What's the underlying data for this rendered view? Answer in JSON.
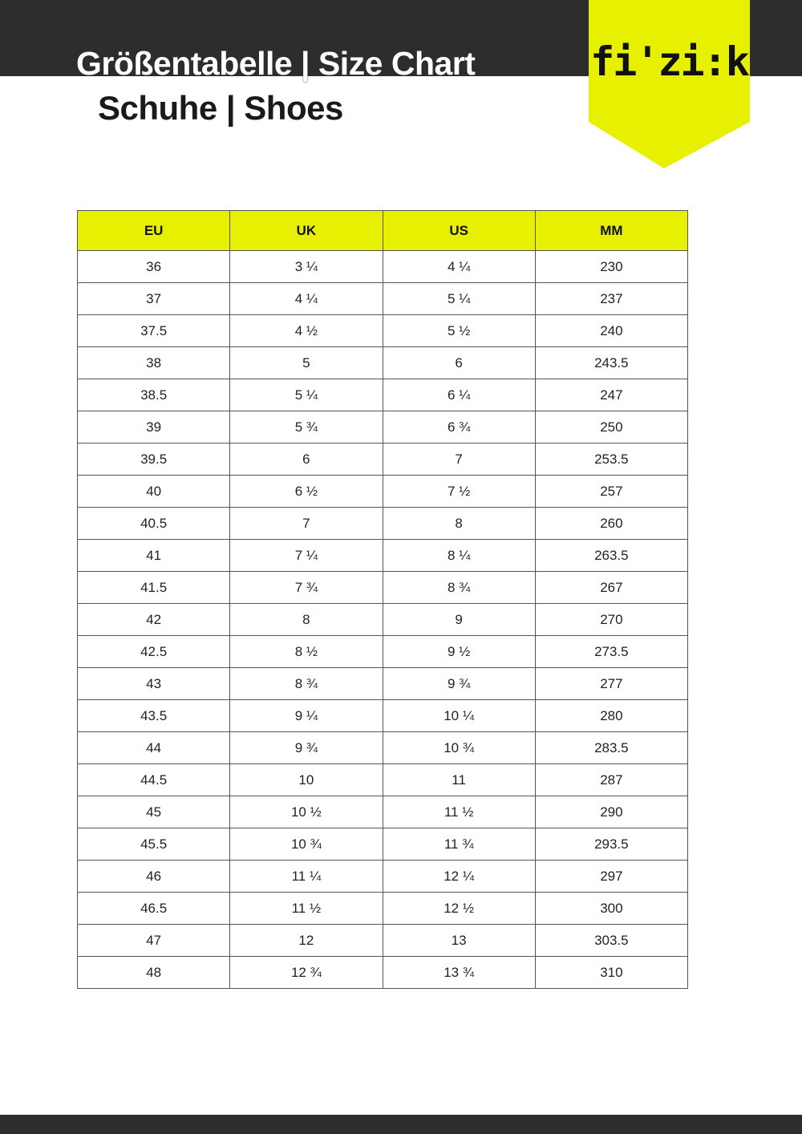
{
  "header": {
    "title": "Größentabelle | Size Chart",
    "subtitle": "Schuhe | Shoes",
    "logo_text": "fi'zi:k"
  },
  "colors": {
    "accent": "#e6f000",
    "dark": "#2d2d2d"
  },
  "table": {
    "columns": [
      "EU",
      "UK",
      "US",
      "MM"
    ],
    "rows": [
      [
        "36",
        "3 ¼",
        "4 ¼",
        "230"
      ],
      [
        "37",
        "4 ¼",
        "5 ¼",
        "237"
      ],
      [
        "37.5",
        "4 ½",
        "5 ½",
        "240"
      ],
      [
        "38",
        "5",
        "6",
        "243.5"
      ],
      [
        "38.5",
        "5 ¼",
        "6 ¼",
        "247"
      ],
      [
        "39",
        "5 ¾",
        "6 ¾",
        "250"
      ],
      [
        "39.5",
        "6",
        "7",
        "253.5"
      ],
      [
        "40",
        "6 ½",
        "7 ½",
        "257"
      ],
      [
        "40.5",
        "7",
        "8",
        "260"
      ],
      [
        "41",
        "7 ¼",
        "8 ¼",
        "263.5"
      ],
      [
        "41.5",
        "7 ¾",
        "8 ¾",
        "267"
      ],
      [
        "42",
        "8",
        "9",
        "270"
      ],
      [
        "42.5",
        "8 ½",
        "9 ½",
        "273.5"
      ],
      [
        "43",
        "8 ¾",
        "9 ¾",
        "277"
      ],
      [
        "43.5",
        "9 ¼",
        "10 ¼",
        "280"
      ],
      [
        "44",
        "9 ¾",
        "10 ¾",
        "283.5"
      ],
      [
        "44.5",
        "10",
        "11",
        "287"
      ],
      [
        "45",
        "10 ½",
        "11 ½",
        "290"
      ],
      [
        "45.5",
        "10 ¾",
        "11 ¾",
        "293.5"
      ],
      [
        "46",
        "11 ¼",
        "12 ¼",
        "297"
      ],
      [
        "46.5",
        "11 ½",
        "12 ½",
        "300"
      ],
      [
        "47",
        "12",
        "13",
        "303.5"
      ],
      [
        "48",
        "12 ¾",
        "13 ¾",
        "310"
      ]
    ]
  }
}
